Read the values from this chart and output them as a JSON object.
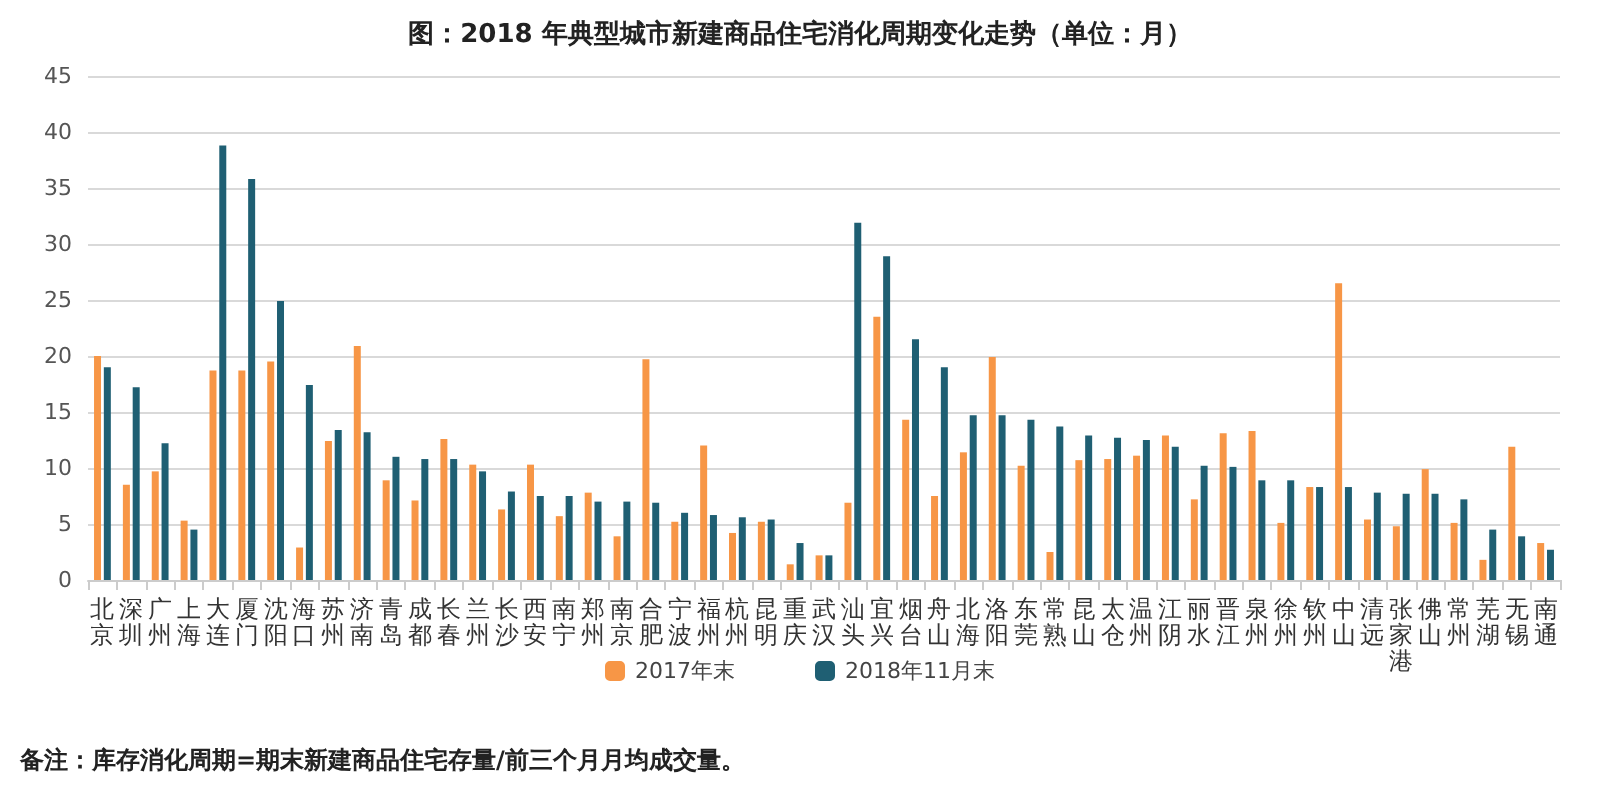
{
  "chart_data": {
    "type": "bar",
    "title": "图：2018 年典型城市新建商品住宅消化周期变化走势（单位：月）",
    "categories": [
      "北京",
      "深圳",
      "广州",
      "上海",
      "大连",
      "厦门",
      "沈阳",
      "海口",
      "苏州",
      "济南",
      "青岛",
      "成都",
      "长春",
      "兰州",
      "长沙",
      "西安",
      "南宁",
      "郑州",
      "南京",
      "合肥",
      "宁波",
      "福州",
      "杭州",
      "昆明",
      "重庆",
      "武汉",
      "汕头",
      "宜兴",
      "烟台",
      "舟山",
      "北海",
      "洛阳",
      "东莞",
      "常熟",
      "昆山",
      "太仓",
      "温州",
      "江阴",
      "丽水",
      "晋江",
      "泉州",
      "徐州",
      "钦州",
      "中山",
      "清远",
      "张家港",
      "佛山",
      "常州",
      "芜湖",
      "无锡",
      "南通"
    ],
    "series": [
      {
        "name": "2017年末",
        "color": "#f79646",
        "values": [
          20,
          8.5,
          9.7,
          5.3,
          18.7,
          18.7,
          19.5,
          2.9,
          12.4,
          20.9,
          8.9,
          7.1,
          12.6,
          10.3,
          6.3,
          10.3,
          5.7,
          7.8,
          3.9,
          19.7,
          5.2,
          12,
          4.2,
          5.2,
          1.4,
          2.2,
          6.9,
          23.5,
          14.3,
          7.5,
          11.4,
          19.9,
          10.2,
          2.5,
          10.7,
          10.8,
          11.1,
          12.9,
          7.2,
          13.1,
          13.3,
          5.1,
          8.3,
          26.5,
          5.4,
          4.8,
          9.9,
          5.1,
          1.8,
          11.9,
          3.3
        ]
      },
      {
        "name": "2018年11月末",
        "color": "#1f5f73",
        "values": [
          19,
          17.2,
          12.2,
          4.5,
          38.8,
          35.8,
          24.9,
          17.4,
          13.4,
          13.2,
          11,
          10.8,
          10.8,
          9.7,
          7.9,
          7.5,
          7.5,
          7,
          7,
          6.9,
          6,
          5.8,
          5.6,
          5.4,
          3.3,
          2.2,
          31.9,
          28.9,
          21.5,
          19,
          14.7,
          14.7,
          14.3,
          13.7,
          12.9,
          12.7,
          12.5,
          11.9,
          10.2,
          10.1,
          8.9,
          8.9,
          8.3,
          8.3,
          7.8,
          7.7,
          7.7,
          7.2,
          4.5,
          3.9,
          2.7
        ]
      }
    ],
    "ylim": [
      0,
      45
    ],
    "yticks": [
      0,
      5,
      10,
      15,
      20,
      25,
      30,
      35,
      40,
      45
    ],
    "grid": "y",
    "legend": "bottom",
    "annotations": [
      "备注：库存消化周期=期末新建商品住宅存量/前三个月月均成交量。"
    ]
  }
}
